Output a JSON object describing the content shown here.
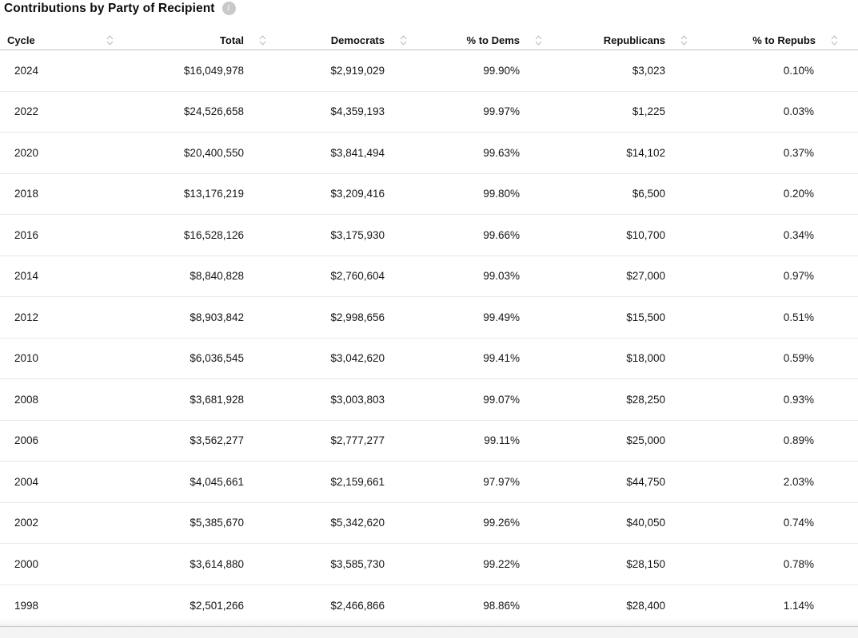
{
  "header": {
    "title": "Contributions by Party of Recipient",
    "info_glyph": "i"
  },
  "table": {
    "columns": [
      {
        "key": "cycle",
        "label": "Cycle",
        "align": "left",
        "sortable": true
      },
      {
        "key": "total",
        "label": "Total",
        "align": "right",
        "sortable": true
      },
      {
        "key": "democrats",
        "label": "Democrats",
        "align": "right",
        "sortable": true
      },
      {
        "key": "pct-to-dems",
        "label": "% to Dems",
        "align": "right",
        "sortable": true
      },
      {
        "key": "republicans",
        "label": "Republicans",
        "align": "right",
        "sortable": true
      },
      {
        "key": "pct-to-repubs",
        "label": "% to Repubs",
        "align": "right",
        "sortable": true
      }
    ],
    "rows": [
      [
        "2024",
        "$16,049,978",
        "$2,919,029",
        "99.90%",
        "$3,023",
        "0.10%"
      ],
      [
        "2022",
        "$24,526,658",
        "$4,359,193",
        "99.97%",
        "$1,225",
        "0.03%"
      ],
      [
        "2020",
        "$20,400,550",
        "$3,841,494",
        "99.63%",
        "$14,102",
        "0.37%"
      ],
      [
        "2018",
        "$13,176,219",
        "$3,209,416",
        "99.80%",
        "$6,500",
        "0.20%"
      ],
      [
        "2016",
        "$16,528,126",
        "$3,175,930",
        "99.66%",
        "$10,700",
        "0.34%"
      ],
      [
        "2014",
        "$8,840,828",
        "$2,760,604",
        "99.03%",
        "$27,000",
        "0.97%"
      ],
      [
        "2012",
        "$8,903,842",
        "$2,998,656",
        "99.49%",
        "$15,500",
        "0.51%"
      ],
      [
        "2010",
        "$6,036,545",
        "$3,042,620",
        "99.41%",
        "$18,000",
        "0.59%"
      ],
      [
        "2008",
        "$3,681,928",
        "$3,003,803",
        "99.07%",
        "$28,250",
        "0.93%"
      ],
      [
        "2006",
        "$3,562,277",
        "$2,777,277",
        "99.11%",
        "$25,000",
        "0.89%"
      ],
      [
        "2004",
        "$4,045,661",
        "$2,159,661",
        "97.97%",
        "$44,750",
        "2.03%"
      ],
      [
        "2002",
        "$5,385,670",
        "$5,342,620",
        "99.26%",
        "$40,050",
        "0.74%"
      ],
      [
        "2000",
        "$3,614,880",
        "$3,585,730",
        "99.22%",
        "$28,150",
        "0.78%"
      ],
      [
        "1998",
        "$2,501,266",
        "$2,466,866",
        "98.86%",
        "$28,400",
        "1.14%"
      ]
    ]
  },
  "chart_data": {
    "type": "table",
    "title": "Contributions by Party of Recipient",
    "columns": [
      "Cycle",
      "Total",
      "Democrats",
      "% to Dems",
      "Republicans",
      "% to Repubs"
    ],
    "rows": [
      [
        "2024",
        16049978,
        2919029,
        99.9,
        3023,
        0.1
      ],
      [
        "2022",
        24526658,
        4359193,
        99.97,
        1225,
        0.03
      ],
      [
        "2020",
        20400550,
        3841494,
        99.63,
        14102,
        0.37
      ],
      [
        "2018",
        13176219,
        3209416,
        99.8,
        6500,
        0.2
      ],
      [
        "2016",
        16528126,
        3175930,
        99.66,
        10700,
        0.34
      ],
      [
        "2014",
        8840828,
        2760604,
        99.03,
        27000,
        0.97
      ],
      [
        "2012",
        8903842,
        2998656,
        99.49,
        15500,
        0.51
      ],
      [
        "2010",
        6036545,
        3042620,
        99.41,
        18000,
        0.59
      ],
      [
        "2008",
        3681928,
        3003803,
        99.07,
        28250,
        0.93
      ],
      [
        "2006",
        3562277,
        2777277,
        99.11,
        25000,
        0.89
      ],
      [
        "2004",
        4045661,
        2159661,
        97.97,
        44750,
        2.03
      ],
      [
        "2002",
        5385670,
        5342620,
        99.26,
        40050,
        0.74
      ],
      [
        "2000",
        3614880,
        3585730,
        99.22,
        28150,
        0.78
      ],
      [
        "1998",
        2501266,
        2466866,
        98.86,
        28400,
        1.14
      ]
    ]
  },
  "colors": {
    "text": "#161616",
    "header_text": "#111111",
    "row_divider": "#e8e8e8",
    "header_divider": "#bfbfbf",
    "bottom_divider": "#c7c7c7",
    "bottom_strip_bg": "#f4f4f4",
    "sort_icon": "#bdbdbd",
    "info_icon_bg": "#c9c9c9"
  }
}
